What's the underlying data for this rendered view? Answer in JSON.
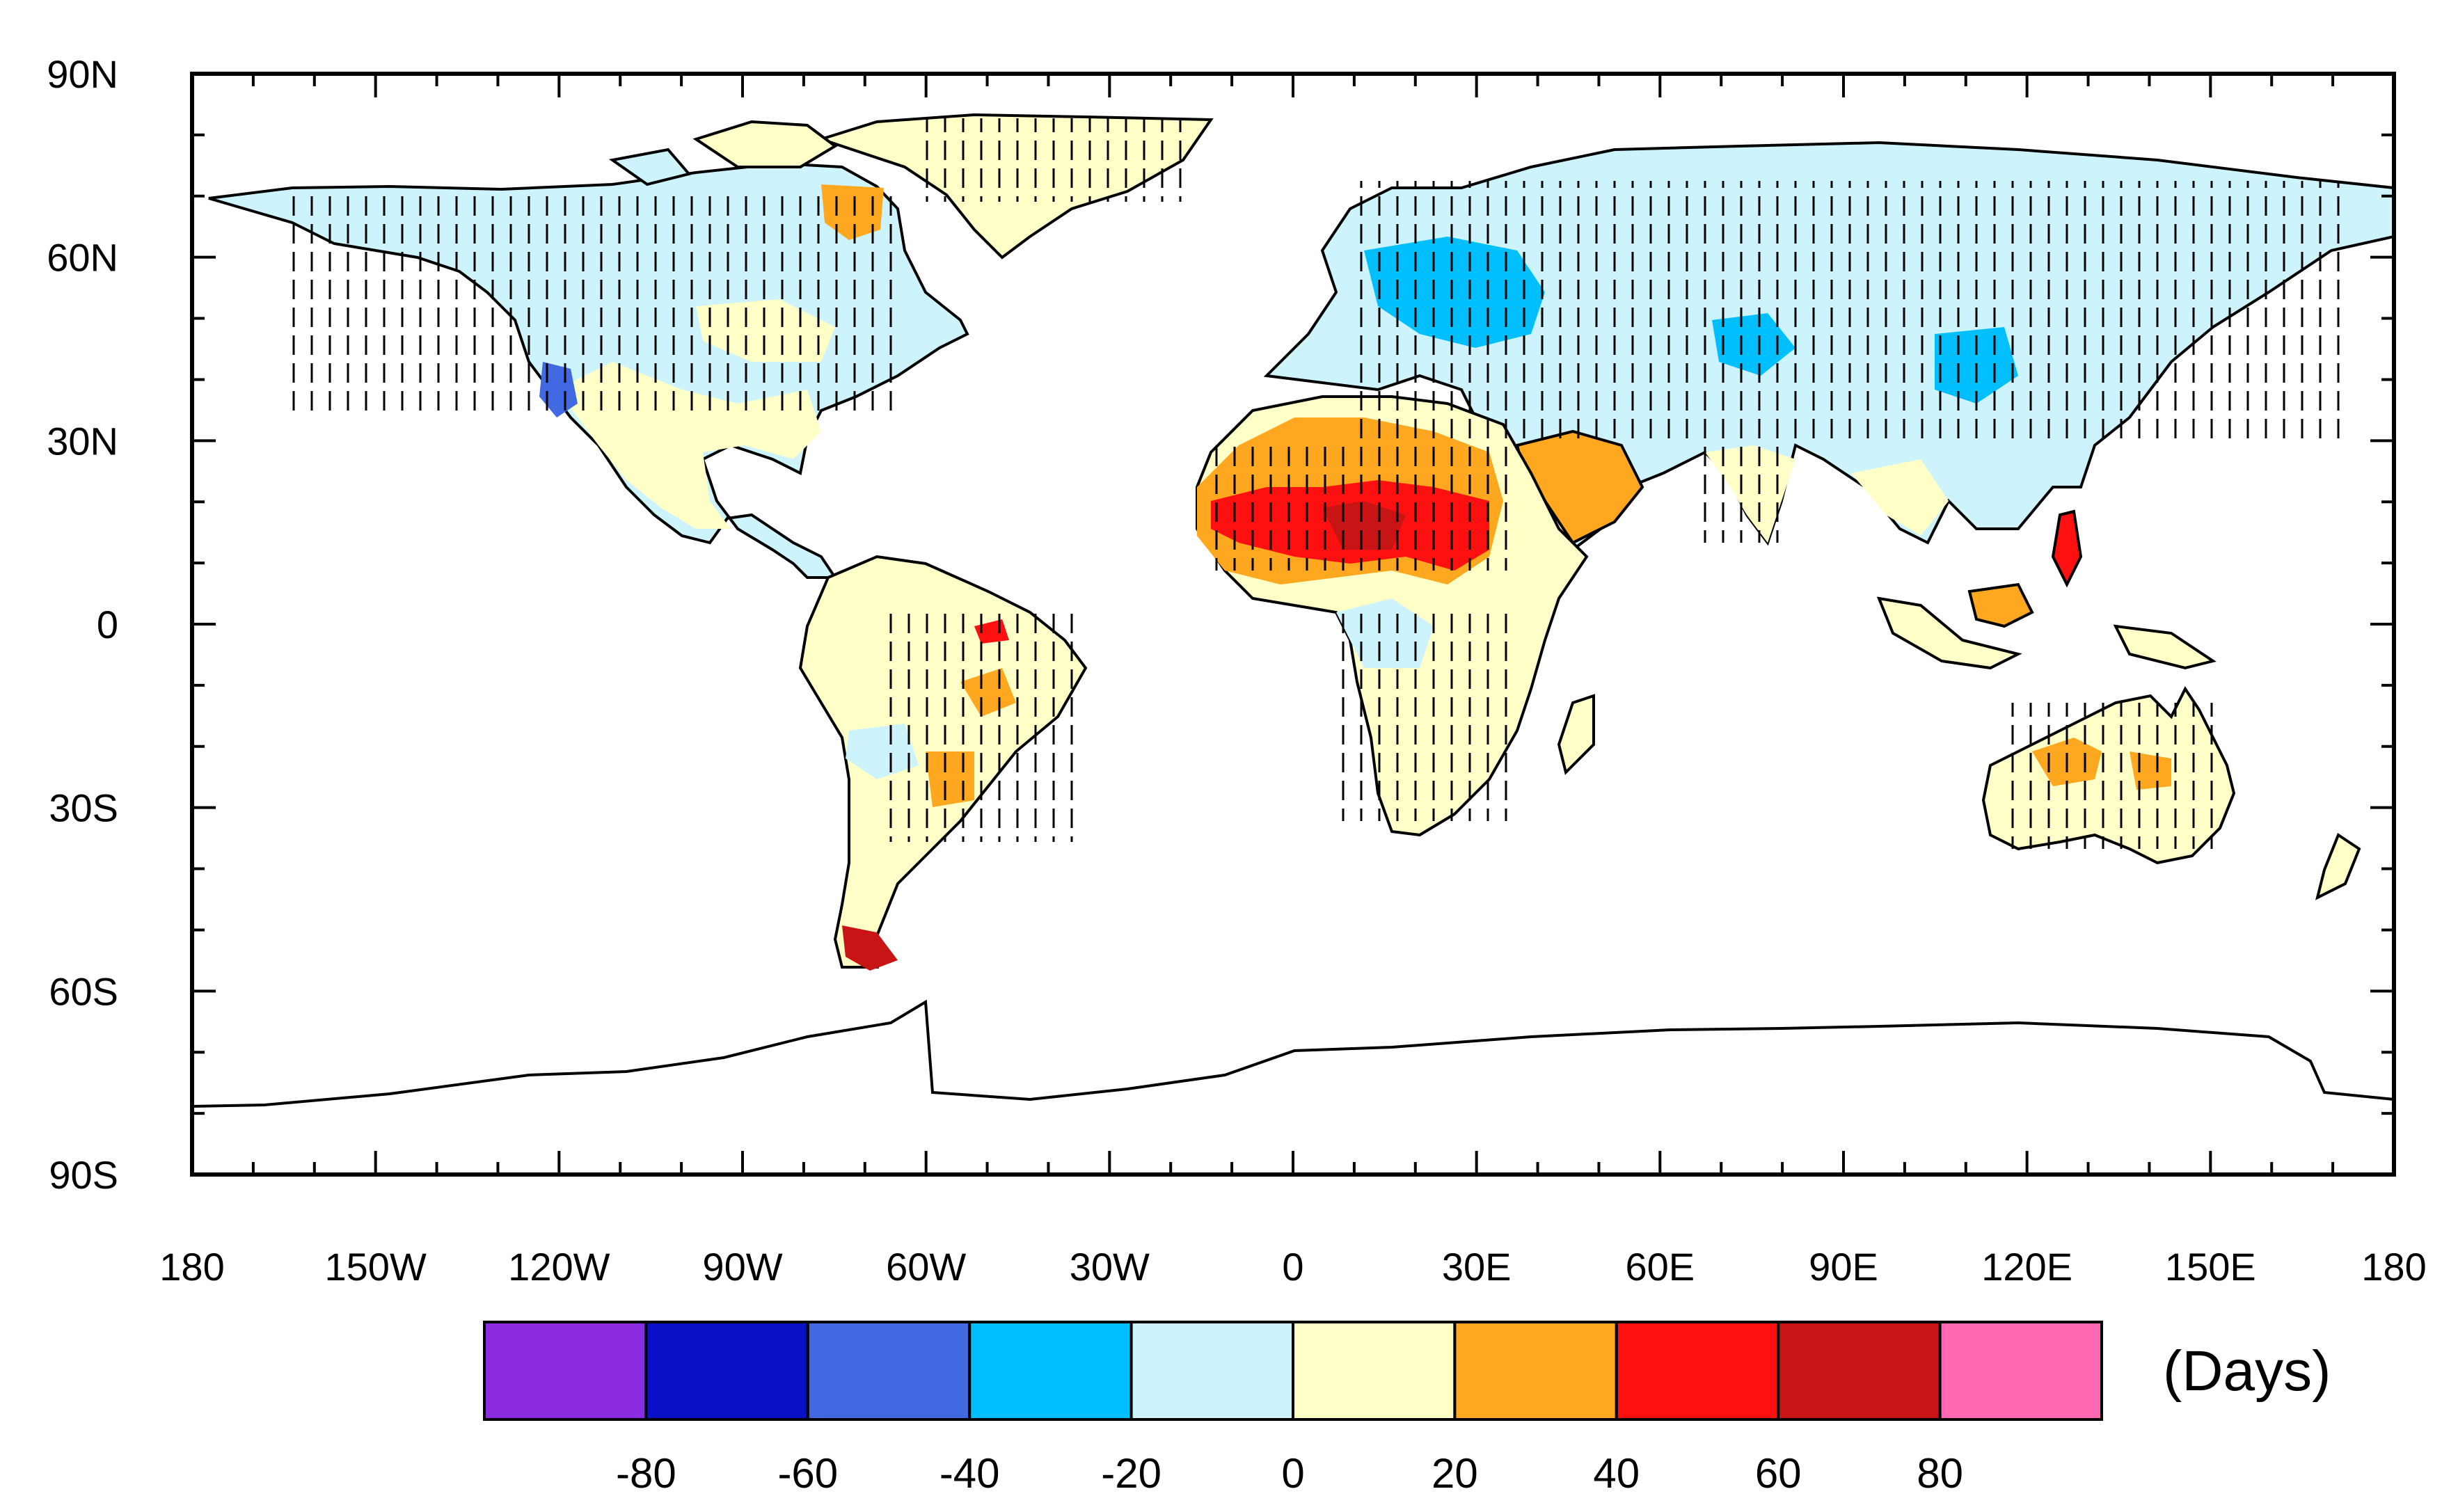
{
  "map": {
    "lat_labels": [
      "90N",
      "60N",
      "30N",
      "0",
      "30S",
      "60S",
      "90S"
    ],
    "lon_labels": [
      "180",
      "150W",
      "120W",
      "90W",
      "60W",
      "30W",
      "0",
      "30E",
      "60E",
      "90E",
      "120E",
      "150E",
      "180"
    ],
    "units": "(Days)",
    "colorbar": {
      "colors": [
        "#8a2be2",
        "#0a10c8",
        "#4169e1",
        "#00bfff",
        "#cdf3fd",
        "#ffffc8",
        "#ffa81f",
        "#ff1010",
        "#c81414",
        "#ff69b4"
      ],
      "tick_labels": [
        "-80",
        "-60",
        "-40",
        "-20",
        "0",
        "20",
        "40",
        "60",
        "80"
      ]
    }
  }
}
